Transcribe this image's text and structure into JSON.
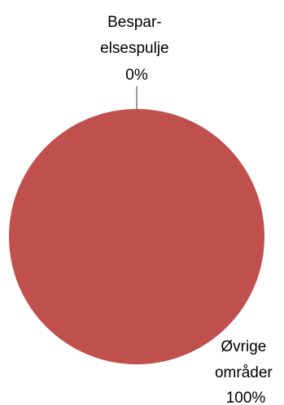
{
  "chart_data": {
    "type": "pie",
    "title": "",
    "legend": "none",
    "categories": [
      "Bespar-elsespulje",
      "Øvrige områder"
    ],
    "values": [
      0,
      100
    ],
    "slices": [
      {
        "name": "Bespar-elsespulje",
        "label_lines": [
          "Bespar-",
          "elsespulje"
        ],
        "value": 0,
        "percent_label": "0%",
        "color": "#1f3864"
      },
      {
        "name": "Øvrige områder",
        "label_lines": [
          "Øvrige",
          "områder"
        ],
        "value": 100,
        "percent_label": "100%",
        "color": "#c0504d"
      }
    ]
  }
}
